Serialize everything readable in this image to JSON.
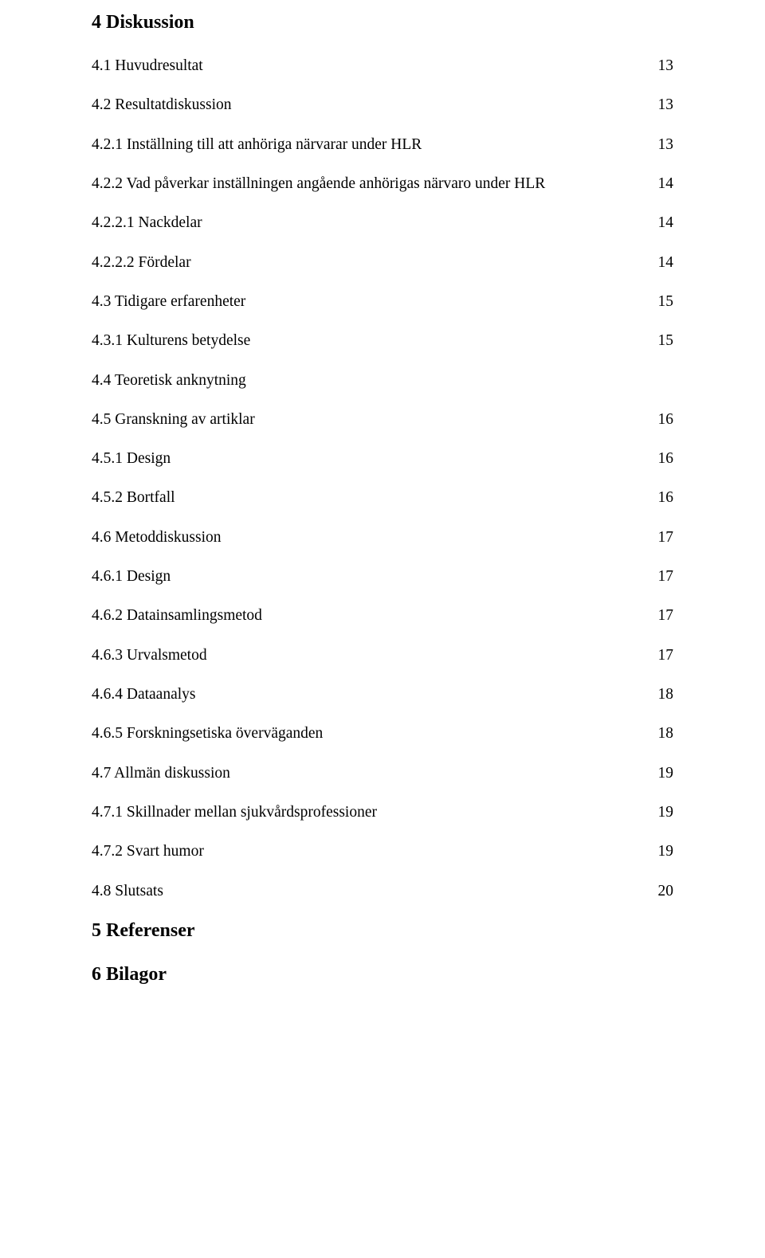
{
  "sections": [
    {
      "id": "s4",
      "label": "4 Diskussion",
      "page": null,
      "type": "heading"
    },
    {
      "id": "s4-1",
      "label": "4.1 Huvudresultat",
      "page": "13",
      "type": "row"
    },
    {
      "id": "s4-2",
      "label": "4.2 Resultatdiskussion",
      "page": "13",
      "type": "row"
    },
    {
      "id": "s4-2-1",
      "label": "4.2.1 Inställning till att anhöriga närvarar under HLR",
      "page": "13",
      "type": "row"
    },
    {
      "id": "s4-2-2",
      "label": "4.2.2  Vad påverkar inställningen angående anhörigas närvaro under HLR",
      "page": "14",
      "type": "row"
    },
    {
      "id": "s4-2-2-1",
      "label": "4.2.2.1 Nackdelar",
      "page": "14",
      "type": "row"
    },
    {
      "id": "s4-2-2-2",
      "label": "4.2.2.2 Fördelar",
      "page": "14",
      "type": "row"
    },
    {
      "id": "s4-3",
      "label": "4.3 Tidigare erfarenheter",
      "page": "15",
      "type": "row"
    },
    {
      "id": "s4-3-1",
      "label": "4.3.1 Kulturens betydelse",
      "page": "15",
      "type": "row"
    },
    {
      "id": "s4-4",
      "label": "4.4 Teoretisk anknytning",
      "page": null,
      "type": "row"
    },
    {
      "id": "s4-5",
      "label": "4.5 Granskning av artiklar",
      "page": "16",
      "type": "row"
    },
    {
      "id": "s4-5-1",
      "label": "4.5.1 Design",
      "page": "16",
      "type": "row"
    },
    {
      "id": "s4-5-2",
      "label": "4.5.2 Bortfall",
      "page": "16",
      "type": "row"
    },
    {
      "id": "s4-6",
      "label": "4.6 Metoddiskussion",
      "page": "17",
      "type": "row"
    },
    {
      "id": "s4-6-1",
      "label": "4.6.1 Design",
      "page": "17",
      "type": "row"
    },
    {
      "id": "s4-6-2",
      "label": "4.6.2 Datainsamlingsmetod",
      "page": "17",
      "type": "row"
    },
    {
      "id": "s4-6-3",
      "label": "4.6.3 Urvalsmetod",
      "page": "17",
      "type": "row"
    },
    {
      "id": "s4-6-4",
      "label": "4.6.4 Dataanalys",
      "page": "18",
      "type": "row"
    },
    {
      "id": "s4-6-5",
      "label": "4.6.5 Forskningsetiska överväganden",
      "page": "18",
      "type": "row"
    },
    {
      "id": "s4-7",
      "label": "4.7 Allmän diskussion",
      "page": "19",
      "type": "row"
    },
    {
      "id": "s4-7-1",
      "label": "4.7.1 Skillnader mellan sjukvårdsprofessioner",
      "page": "19",
      "type": "row"
    },
    {
      "id": "s4-7-2",
      "label": "4.7.2 Svart humor",
      "page": "19",
      "type": "row"
    },
    {
      "id": "s4-8",
      "label": "4.8 Slutsats",
      "page": "20",
      "type": "row"
    },
    {
      "id": "s5",
      "label": "5 Referenser",
      "page": null,
      "type": "heading"
    },
    {
      "id": "s6",
      "label": "6 Bilagor",
      "page": null,
      "type": "heading"
    }
  ]
}
